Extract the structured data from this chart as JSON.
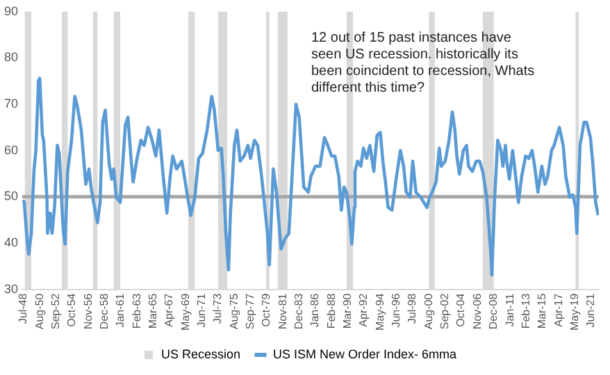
{
  "chart_data": {
    "type": "line",
    "xlim": [
      "1948-05",
      "2022-06"
    ],
    "xticks": [
      {
        "value": "1948-07",
        "label": "Jul-48"
      },
      {
        "value": "1950-08",
        "label": "Aug-50"
      },
      {
        "value": "1952-09",
        "label": "Sep-52"
      },
      {
        "value": "1954-10",
        "label": "Oct-54"
      },
      {
        "value": "1956-11",
        "label": "Nov-56"
      },
      {
        "value": "1958-12",
        "label": "Dec-58"
      },
      {
        "value": "1961-01",
        "label": "Jan-61"
      },
      {
        "value": "1963-02",
        "label": "Feb-63"
      },
      {
        "value": "1965-03",
        "label": "Mar-65"
      },
      {
        "value": "1967-04",
        "label": "Apr-67"
      },
      {
        "value": "1969-05",
        "label": "May-69"
      },
      {
        "value": "1971-06",
        "label": "Jun-71"
      },
      {
        "value": "1973-07",
        "label": "Jul-73"
      },
      {
        "value": "1975-08",
        "label": "Aug-75"
      },
      {
        "value": "1977-09",
        "label": "Sep-77"
      },
      {
        "value": "1979-10",
        "label": "Oct-79"
      },
      {
        "value": "1981-11",
        "label": "Nov-81"
      },
      {
        "value": "1983-12",
        "label": "Dec-83"
      },
      {
        "value": "1986-01",
        "label": "Jan-86"
      },
      {
        "value": "1988-02",
        "label": "Feb-88"
      },
      {
        "value": "1990-03",
        "label": "Mar-90"
      },
      {
        "value": "1992-04",
        "label": "Apr-92"
      },
      {
        "value": "1994-05",
        "label": "May-94"
      },
      {
        "value": "1996-06",
        "label": "Jun-96"
      },
      {
        "value": "1998-07",
        "label": "Jul-98"
      },
      {
        "value": "2000-08",
        "label": "Aug-00"
      },
      {
        "value": "2002-09",
        "label": "Sep-02"
      },
      {
        "value": "2004-10",
        "label": "Oct-04"
      },
      {
        "value": "2006-11",
        "label": "Nov-06"
      },
      {
        "value": "2008-12",
        "label": "Dec-08"
      },
      {
        "value": "2011-01",
        "label": "Jan-11"
      },
      {
        "value": "2013-02",
        "label": "Feb-13"
      },
      {
        "value": "2015-03",
        "label": "Mar-15"
      },
      {
        "value": "2017-04",
        "label": "Apr-17"
      },
      {
        "value": "2019-05",
        "label": "May-19"
      },
      {
        "value": "2021-06",
        "label": "Jun-21"
      }
    ],
    "ylim": [
      30,
      90
    ],
    "yticks": [
      30,
      40,
      50,
      60,
      70,
      80,
      90
    ],
    "series": [
      {
        "name": "US ISM New Order Index- 6mma",
        "color": "#5b9bd5",
        "x": [
          "1948-06",
          "1948-08",
          "1949-01",
          "1949-03",
          "1949-07",
          "1949-11",
          "1950-02",
          "1950-06",
          "1950-08",
          "1950-12",
          "1951-02",
          "1951-07",
          "1951-08",
          "1951-12",
          "1952-03",
          "1952-07",
          "1952-11",
          "1953-02",
          "1953-08",
          "1953-11",
          "1954-03",
          "1954-09",
          "1955-02",
          "1955-06",
          "1955-12",
          "1956-07",
          "1956-12",
          "1957-03",
          "1957-07",
          "1958-01",
          "1958-05",
          "1958-09",
          "1959-01",
          "1959-07",
          "1959-11",
          "1960-02",
          "1960-06",
          "1960-12",
          "1961-08",
          "1961-12",
          "1962-05",
          "1962-08",
          "1963-02",
          "1963-08",
          "1964-01",
          "1964-07",
          "1964-12",
          "1965-07",
          "1965-12",
          "1966-06",
          "1966-12",
          "1967-05",
          "1967-09",
          "1968-03",
          "1968-11",
          "1969-03",
          "1969-08",
          "1970-01",
          "1970-07",
          "1971-01",
          "1971-07",
          "1972-02",
          "1972-09",
          "1973-01",
          "1973-07",
          "1973-12",
          "1974-03",
          "1974-07",
          "1974-11",
          "1975-02",
          "1975-08",
          "1975-12",
          "1976-05",
          "1976-11",
          "1977-05",
          "1977-09",
          "1978-03",
          "1978-08",
          "1979-02",
          "1979-07",
          "1979-11",
          "1980-02",
          "1980-08",
          "1981-01",
          "1981-08",
          "1982-02",
          "1982-08",
          "1983-01",
          "1983-07",
          "1983-12",
          "1984-07",
          "1985-02",
          "1985-06",
          "1986-01",
          "1986-08",
          "1987-03",
          "1987-08",
          "1988-02",
          "1988-07",
          "1989-01",
          "1989-05",
          "1989-09",
          "1990-01",
          "1990-06",
          "1990-09",
          "1991-01",
          "1991-02",
          "1991-06",
          "1991-11",
          "1992-03",
          "1992-08",
          "1993-01",
          "1993-07",
          "1993-12",
          "1994-05",
          "1994-09",
          "1995-01",
          "1995-05",
          "1995-11",
          "1996-06",
          "1996-12",
          "1997-05",
          "1997-09",
          "1998-03",
          "1998-07",
          "1998-12",
          "1999-07",
          "2000-05",
          "2000-09",
          "2001-01",
          "2001-07",
          "2001-12",
          "2002-03",
          "2002-09",
          "2003-03",
          "2003-08",
          "2003-12",
          "2004-03",
          "2004-07",
          "2005-01",
          "2005-06",
          "2005-09",
          "2006-03",
          "2006-09",
          "2007-02",
          "2007-07",
          "2008-01",
          "2008-07",
          "2008-09",
          "2009-01",
          "2009-06",
          "2009-11",
          "2010-02",
          "2010-06",
          "2010-08",
          "2010-12",
          "2011-05",
          "2011-08",
          "2012-02",
          "2012-07",
          "2013-01",
          "2013-06",
          "2013-11",
          "2014-03",
          "2014-08",
          "2015-02",
          "2015-07",
          "2015-11",
          "2016-05",
          "2016-09",
          "2017-05",
          "2017-11",
          "2018-03",
          "2018-09",
          "2019-02",
          "2019-06",
          "2019-08",
          "2020-01",
          "2020-07",
          "2020-11",
          "2021-05",
          "2021-09",
          "2022-01",
          "2022-05"
        ],
        "values": [
          49.3,
          48.8,
          39.8,
          37.6,
          42.1,
          55.5,
          60,
          75.1,
          75.6,
          63.3,
          62.2,
          49.9,
          42.1,
          46.5,
          42.1,
          48.2,
          61.1,
          59.4,
          43.2,
          39.8,
          55.5,
          62.2,
          71.7,
          69.5,
          64.4,
          52.7,
          56,
          52.1,
          48.8,
          44.4,
          48.8,
          66.1,
          68.7,
          57.2,
          53.8,
          56,
          49.9,
          48.8,
          65.5,
          67.2,
          57.7,
          53.2,
          58.3,
          62.2,
          61.1,
          65,
          62.8,
          58.8,
          64.4,
          54.9,
          46.5,
          54.4,
          58.8,
          56,
          57.7,
          54.4,
          49.9,
          46,
          49.9,
          58.3,
          59.4,
          64.4,
          71.7,
          68.9,
          60,
          60.5,
          54.4,
          42.1,
          34.2,
          46.5,
          61.1,
          64.4,
          57.7,
          58.8,
          61.1,
          58.3,
          62.2,
          61.1,
          54.4,
          47.7,
          42.1,
          35.3,
          56,
          51,
          38.7,
          40.9,
          42.1,
          54.4,
          70,
          67.2,
          52.1,
          51,
          54.4,
          56.6,
          56.6,
          62.8,
          61.1,
          58.8,
          58.8,
          54.4,
          47.1,
          52.1,
          51,
          45.4,
          39.8,
          47.7,
          55.5,
          57.7,
          56.6,
          60.5,
          58.3,
          61.1,
          55.5,
          63.3,
          63.9,
          57.7,
          53.2,
          47.7,
          47.1,
          54.4,
          60,
          56.6,
          51,
          49.9,
          57.7,
          51,
          49.9,
          47.7,
          49.9,
          51,
          53.2,
          60.5,
          56.6,
          57.7,
          62.2,
          68.3,
          64.4,
          58.8,
          54.9,
          60,
          61.1,
          56.6,
          55.5,
          57.7,
          57.7,
          55.5,
          49.9,
          38.7,
          33.1,
          48.8,
          62.2,
          60,
          56.6,
          61.1,
          57.7,
          53.8,
          60,
          56.6,
          48.8,
          54.4,
          58.8,
          58.3,
          60,
          56.6,
          51,
          56.6,
          52.7,
          54.4,
          60,
          61.1,
          65,
          61.1,
          54.4,
          49.9,
          50.4,
          47.7,
          42.1,
          61.1,
          66.1,
          66.1,
          62.8,
          56.6,
          48.8,
          46
        ]
      }
    ],
    "bands": [
      {
        "axis": "x",
        "from": "1948-09",
        "to": "1949-07",
        "label": "US Recession",
        "color": "#d9d9d9"
      },
      {
        "axis": "x",
        "from": "1953-06",
        "to": "1954-03",
        "color": "#d9d9d9"
      },
      {
        "axis": "x",
        "from": "1957-06",
        "to": "1958-01",
        "color": "#d9d9d9"
      },
      {
        "axis": "x",
        "from": "1960-02",
        "to": "1960-12",
        "color": "#d9d9d9"
      },
      {
        "axis": "x",
        "from": "1969-09",
        "to": "1970-07",
        "color": "#d9d9d9"
      },
      {
        "axis": "x",
        "from": "1973-07",
        "to": "1974-09",
        "color": "#d9d9d9"
      },
      {
        "axis": "x",
        "from": "1979-09",
        "to": "1980-02",
        "color": "#d9d9d9"
      },
      {
        "axis": "x",
        "from": "1981-03",
        "to": "1982-06",
        "color": "#d9d9d9"
      },
      {
        "axis": "x",
        "from": "1990-01",
        "to": "1990-11",
        "color": "#d9d9d9"
      },
      {
        "axis": "x",
        "from": "2000-08",
        "to": "2001-05",
        "color": "#d9d9d9"
      },
      {
        "axis": "x",
        "from": "2007-07",
        "to": "2008-12",
        "color": "#d9d9d9"
      },
      {
        "axis": "x",
        "from": "2019-06",
        "to": "2019-11",
        "color": "#d9d9d9"
      }
    ],
    "ref_lines": [
      {
        "axis": "y",
        "value": 50,
        "color": "#a6a6a6"
      }
    ],
    "annotations": [
      "12 out of 15 past instances have seen US recession. historically its been coincident to recession, Whats different this time?"
    ],
    "legend": "bottom",
    "marker": "none"
  }
}
